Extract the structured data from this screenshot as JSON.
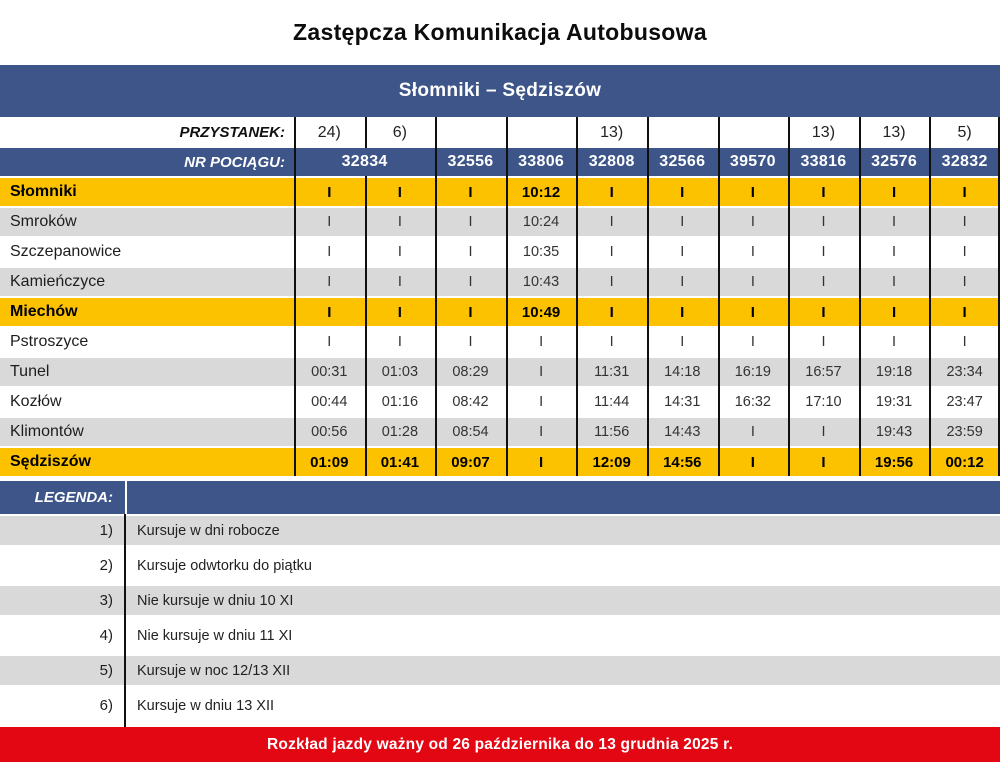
{
  "title": "Zastępcza Komunikacja Autobusowa",
  "route": {
    "name": "Słomniki – Sędziszów"
  },
  "timetable": {
    "stop_header_label": "PRZYSTANEK:",
    "train_header_label": "NR POCIĄGU:",
    "footnote_marks": [
      "24)",
      "6)",
      "",
      "",
      "13)",
      "",
      "",
      "13)",
      "13)",
      "5)"
    ],
    "trains": [
      {
        "number": "32834",
        "span": 2
      },
      {
        "number": "32556",
        "span": 1
      },
      {
        "number": "33806",
        "span": 1
      },
      {
        "number": "32808",
        "span": 1
      },
      {
        "number": "32566",
        "span": 1
      },
      {
        "number": "39570",
        "span": 1
      },
      {
        "number": "33816",
        "span": 1
      },
      {
        "number": "32576",
        "span": 1
      },
      {
        "number": "32832",
        "span": 1
      }
    ],
    "no_service_mark": "I",
    "rows": [
      {
        "station": "Słomniki",
        "variant": "yellow",
        "times": [
          "I",
          "I",
          "I",
          "10:12",
          "I",
          "I",
          "I",
          "I",
          "I",
          "I"
        ]
      },
      {
        "station": "Smroków",
        "variant": "gray",
        "times": [
          "I",
          "I",
          "I",
          "10:24",
          "I",
          "I",
          "I",
          "I",
          "I",
          "I"
        ]
      },
      {
        "station": "Szczepanowice",
        "variant": "white",
        "times": [
          "I",
          "I",
          "I",
          "10:35",
          "I",
          "I",
          "I",
          "I",
          "I",
          "I"
        ]
      },
      {
        "station": "Kamieńczyce",
        "variant": "gray",
        "times": [
          "I",
          "I",
          "I",
          "10:43",
          "I",
          "I",
          "I",
          "I",
          "I",
          "I"
        ]
      },
      {
        "station": "Miechów",
        "variant": "yellow",
        "times": [
          "I",
          "I",
          "I",
          "10:49",
          "I",
          "I",
          "I",
          "I",
          "I",
          "I"
        ]
      },
      {
        "station": "Pstroszyce",
        "variant": "white",
        "times": [
          "I",
          "I",
          "I",
          "I",
          "I",
          "I",
          "I",
          "I",
          "I",
          "I"
        ]
      },
      {
        "station": "Tunel",
        "variant": "gray",
        "times": [
          "00:31",
          "01:03",
          "08:29",
          "I",
          "11:31",
          "14:18",
          "16:19",
          "16:57",
          "19:18",
          "23:34"
        ]
      },
      {
        "station": "Kozłów",
        "variant": "white",
        "times": [
          "00:44",
          "01:16",
          "08:42",
          "I",
          "11:44",
          "14:31",
          "16:32",
          "17:10",
          "19:31",
          "23:47"
        ]
      },
      {
        "station": "Klimontów",
        "variant": "gray",
        "times": [
          "00:56",
          "01:28",
          "08:54",
          "I",
          "11:56",
          "14:43",
          "I",
          "I",
          "19:43",
          "23:59"
        ]
      },
      {
        "station": "Sędziszów",
        "variant": "yellow",
        "times": [
          "01:09",
          "01:41",
          "09:07",
          "I",
          "12:09",
          "14:56",
          "I",
          "I",
          "19:56",
          "00:12"
        ]
      }
    ]
  },
  "legend": {
    "header_label": "LEGENDA:",
    "items": [
      {
        "mark": "1)",
        "text": "Kursuje w dni robocze"
      },
      {
        "mark": "2)",
        "text": "Kursuje odwtorku do piątku"
      },
      {
        "mark": "3)",
        "text": "Nie kursuje w dniu 10 XI"
      },
      {
        "mark": "4)",
        "text": "Nie kursuje w dniu 11 XI"
      },
      {
        "mark": "5)",
        "text": "Kursuje w noc 12/13 XII"
      },
      {
        "mark": "6)",
        "text": "Kursuje w dniu 13 XII"
      }
    ]
  },
  "footer": {
    "validity_note": "Rozkład jazdy ważny od 26 października do 13 grudnia 2025 r."
  },
  "colors": {
    "header_blue": "#3d5588",
    "highlight_yellow": "#fcc200",
    "stripe_gray": "#d9d9d9",
    "footer_red": "#e30613"
  }
}
